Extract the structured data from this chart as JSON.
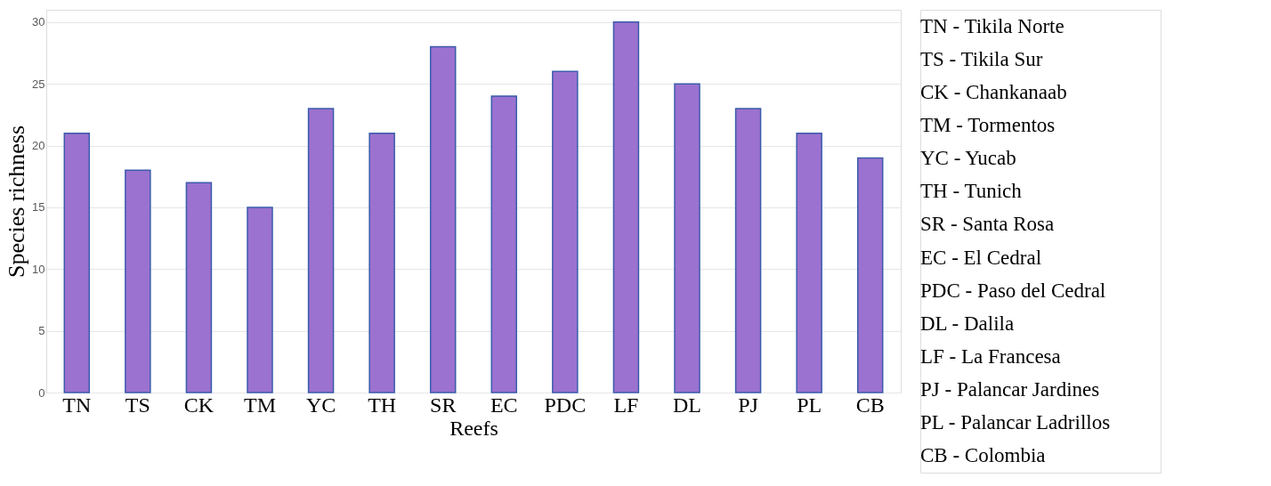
{
  "chart_data": {
    "type": "bar",
    "xlabel": "Reefs",
    "ylabel": "Species richness",
    "categories": [
      "TN",
      "TS",
      "CK",
      "TM",
      "YC",
      "TH",
      "SR",
      "EC",
      "PDC",
      "LF",
      "DL",
      "PJ",
      "PL",
      "CB"
    ],
    "values": [
      21,
      18,
      17,
      15,
      23,
      21,
      28,
      24,
      26,
      30,
      25,
      23,
      21,
      19
    ],
    "color": "#9b72cf",
    "ylim": [
      0,
      31
    ],
    "yticks": [
      0,
      5,
      10,
      15,
      20,
      25,
      30
    ],
    "grid": "y",
    "annotations": [
      "TN - Tikila Norte",
      "TS -  Tikila Sur",
      "CK - Chankanaab",
      "TM - Tormentos",
      "YC - Yucab",
      "TH - Tunich",
      "SR - Santa Rosa",
      "EC - El Cedral",
      "PDC - Paso del Cedral",
      "DL - Dalila",
      "LF - La Francesa",
      "PJ - Palancar Jardines",
      "PL - Palancar Ladrillos",
      "CB - Colombia"
    ]
  }
}
